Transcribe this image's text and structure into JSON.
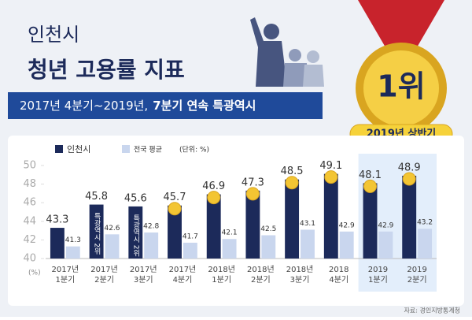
{
  "header": {
    "line1": "인천시",
    "line2": "청년 고용률 지표",
    "banner_normal": "2017년 4분기~2019년,",
    "banner_bold": "7분기 연속 특광역시",
    "medal": "1위",
    "medal_badge": "2019년 상반기"
  },
  "chart_data": {
    "type": "bar",
    "categories": [
      [
        "2017년",
        "1분기"
      ],
      [
        "2017년",
        "2분기"
      ],
      [
        "2017년",
        "3분기"
      ],
      [
        "2017년",
        "4분기"
      ],
      [
        "2018년",
        "1분기"
      ],
      [
        "2018년",
        "2분기"
      ],
      [
        "2018년",
        "3분기"
      ],
      [
        "2018",
        "4분기"
      ],
      [
        "2019",
        "1분기"
      ],
      [
        "2019",
        "2분기"
      ]
    ],
    "series": [
      {
        "name": "인천시",
        "color": "#1c2a5a",
        "values": [
          43.3,
          45.8,
          45.6,
          45.7,
          46.9,
          47.3,
          48.5,
          49.1,
          48.1,
          48.9
        ]
      },
      {
        "name": "전국 평균",
        "color": "#c9d6ee",
        "values": [
          41.3,
          42.6,
          42.8,
          41.7,
          42.1,
          42.5,
          43.1,
          42.9,
          42.9,
          43.2
        ]
      }
    ],
    "bar_notes": [
      null,
      "특광역시 2위",
      "특광역시 2위",
      null,
      null,
      null,
      null,
      null,
      null,
      null
    ],
    "unit_note": "(단위: %)",
    "y_unit": "(%)",
    "ylim": [
      40,
      50
    ],
    "yticks": [
      40,
      42,
      44,
      46,
      48,
      50
    ],
    "grid": false,
    "source": "자료: 경인지방통계청"
  }
}
